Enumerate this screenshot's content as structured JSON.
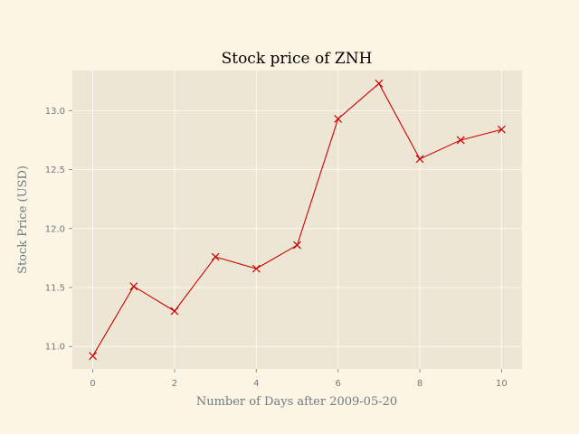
{
  "chart_data": {
    "type": "line",
    "title": "Stock price of ZNH",
    "xlabel": "Number of Days after 2009-05-20",
    "ylabel": "Stock Price (USD)",
    "x": [
      0,
      1,
      2,
      3,
      4,
      5,
      6,
      7,
      8,
      9,
      10
    ],
    "series": [
      {
        "values": [
          10.92,
          11.51,
          11.3,
          11.76,
          11.66,
          11.86,
          12.93,
          13.23,
          12.59,
          12.75,
          12.84
        ],
        "color": "#cc0000",
        "marker": "x"
      }
    ],
    "xlim": [
      -0.5,
      10.5
    ],
    "ylim": [
      10.81,
      13.34
    ],
    "xticks": [
      0,
      2,
      4,
      6,
      8,
      10
    ],
    "xtick_labels": [
      "0",
      "2",
      "4",
      "6",
      "8",
      "10"
    ],
    "yticks": [
      11.0,
      11.5,
      12.0,
      12.5,
      13.0
    ],
    "ytick_labels": [
      "11.0",
      "11.5",
      "12.0",
      "12.5",
      "13.0"
    ],
    "grid": true,
    "colors": {
      "figure_background": "#fcf5e3",
      "plot_background": "#ede6d4",
      "grid": "#ffffff",
      "text": "#6e7b80",
      "series": "#cc0000"
    }
  }
}
